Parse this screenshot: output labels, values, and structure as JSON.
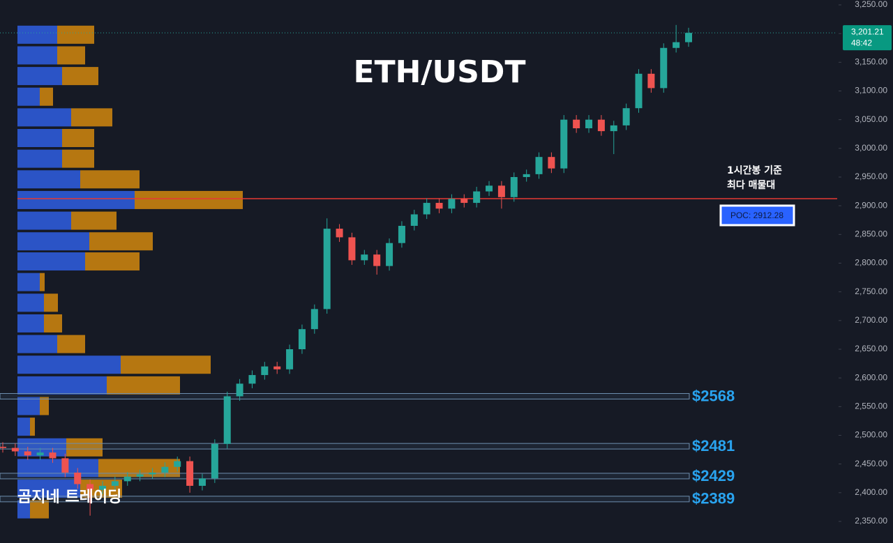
{
  "chart_data": {
    "type": "candlestick",
    "title": "ETH/USDT",
    "watermark": "곰지네 트레이딩",
    "ylim": [
      2350,
      3250
    ],
    "yticks": [
      {
        "value": 2350,
        "label": "2,350.00"
      },
      {
        "value": 2400,
        "label": "2,400.00"
      },
      {
        "value": 2450,
        "label": "2,450.00"
      },
      {
        "value": 2500,
        "label": "2,500.00"
      },
      {
        "value": 2550,
        "label": "2,550.00"
      },
      {
        "value": 2600,
        "label": "2,600.00"
      },
      {
        "value": 2650,
        "label": "2,650.00"
      },
      {
        "value": 2700,
        "label": "2,700.00"
      },
      {
        "value": 2750,
        "label": "2,750.00"
      },
      {
        "value": 2800,
        "label": "2,800.00"
      },
      {
        "value": 2850,
        "label": "2,850.00"
      },
      {
        "value": 2900,
        "label": "2,900.00"
      },
      {
        "value": 2950,
        "label": "2,950.00"
      },
      {
        "value": 3000,
        "label": "3,000.00"
      },
      {
        "value": 3050,
        "label": "3,050.00"
      },
      {
        "value": 3100,
        "label": "3,100.00"
      },
      {
        "value": 3150,
        "label": "3,150.00"
      },
      {
        "value": 3200,
        "label": "3,200.00"
      },
      {
        "value": 3250,
        "label": "3,250.00"
      }
    ],
    "up_color": "#26a69a",
    "down_color": "#ef5350",
    "open": [
      2480,
      2478,
      2472,
      2465,
      2470,
      2460,
      2435,
      2415,
      2405,
      2412,
      2420,
      2428,
      2432,
      2435,
      2445,
      2455,
      2412,
      2425,
      2485,
      2568,
      2590,
      2605,
      2620,
      2615,
      2650,
      2685,
      2720,
      2860,
      2845,
      2805,
      2815,
      2795,
      2835,
      2865,
      2885,
      2905,
      2895,
      2912,
      2905,
      2925,
      2935,
      2915,
      2950,
      2955,
      2985,
      2965,
      3050,
      3035,
      3050,
      3030,
      3040,
      3070,
      3130,
      3105,
      3175,
      3185
    ],
    "high": [
      2488,
      2486,
      2480,
      2478,
      2478,
      2468,
      2443,
      2423,
      2420,
      2428,
      2436,
      2440,
      2443,
      2453,
      2463,
      2463,
      2433,
      2493,
      2576,
      2598,
      2613,
      2628,
      2628,
      2658,
      2693,
      2728,
      2878,
      2868,
      2853,
      2823,
      2823,
      2843,
      2873,
      2893,
      2913,
      2913,
      2920,
      2920,
      2933,
      2943,
      2943,
      2958,
      2963,
      2993,
      2993,
      3058,
      3058,
      3058,
      3058,
      3048,
      3078,
      3138,
      3138,
      3183,
      3215,
      3210
    ],
    "low": [
      2470,
      2464,
      2457,
      2457,
      2452,
      2427,
      2407,
      2360,
      2397,
      2404,
      2412,
      2420,
      2424,
      2427,
      2437,
      2400,
      2404,
      2417,
      2477,
      2560,
      2582,
      2597,
      2607,
      2607,
      2642,
      2677,
      2712,
      2837,
      2797,
      2797,
      2780,
      2787,
      2827,
      2857,
      2877,
      2887,
      2887,
      2897,
      2897,
      2917,
      2895,
      2907,
      2942,
      2947,
      2957,
      2957,
      3027,
      3027,
      3022,
      2990,
      3032,
      3062,
      3097,
      3097,
      3167,
      3177
    ],
    "close": [
      2478,
      2472,
      2465,
      2470,
      2460,
      2435,
      2415,
      2405,
      2412,
      2420,
      2428,
      2432,
      2435,
      2445,
      2455,
      2412,
      2425,
      2485,
      2568,
      2590,
      2605,
      2620,
      2615,
      2650,
      2685,
      2720,
      2860,
      2845,
      2805,
      2815,
      2795,
      2835,
      2865,
      2885,
      2905,
      2895,
      2912,
      2905,
      2925,
      2935,
      2915,
      2950,
      2955,
      2985,
      2965,
      3050,
      3035,
      3050,
      3030,
      3040,
      3070,
      3130,
      3105,
      3175,
      3185,
      3201.21
    ],
    "volume_profile": {
      "price": [
        3198,
        3162,
        3126,
        3090,
        3054,
        3018,
        2982,
        2946,
        2910,
        2874,
        2838,
        2803,
        2767,
        2731,
        2695,
        2659,
        2623,
        2587,
        2551,
        2515,
        2479,
        2443,
        2407,
        2371
      ],
      "buy": [
        57,
        57,
        64,
        32,
        77,
        64,
        64,
        90,
        168,
        77,
        103,
        97,
        32,
        38,
        38,
        57,
        148,
        128,
        32,
        18,
        70,
        116,
        90,
        18
      ],
      "sell": [
        53,
        40,
        52,
        19,
        59,
        46,
        46,
        85,
        155,
        65,
        91,
        78,
        7,
        20,
        26,
        40,
        129,
        105,
        13,
        7,
        52,
        117,
        60,
        27
      ],
      "buy_color": "#2e5bd8",
      "sell_color": "#c8820f"
    },
    "levels": [
      {
        "value": 2568,
        "label": "$2568"
      },
      {
        "value": 2481,
        "label": "$2481"
      },
      {
        "value": 2429,
        "label": "$2429"
      },
      {
        "value": 2389,
        "label": "$2389"
      }
    ],
    "poc": {
      "value": 2912.28,
      "label": "POC: 2912.28",
      "color": "#e53935"
    },
    "annotation": [
      "1시간봉 기준",
      "최다 매물대"
    ],
    "last_price": {
      "value": 3201.21,
      "label": "3,201.21"
    },
    "countdown": "48:42"
  }
}
